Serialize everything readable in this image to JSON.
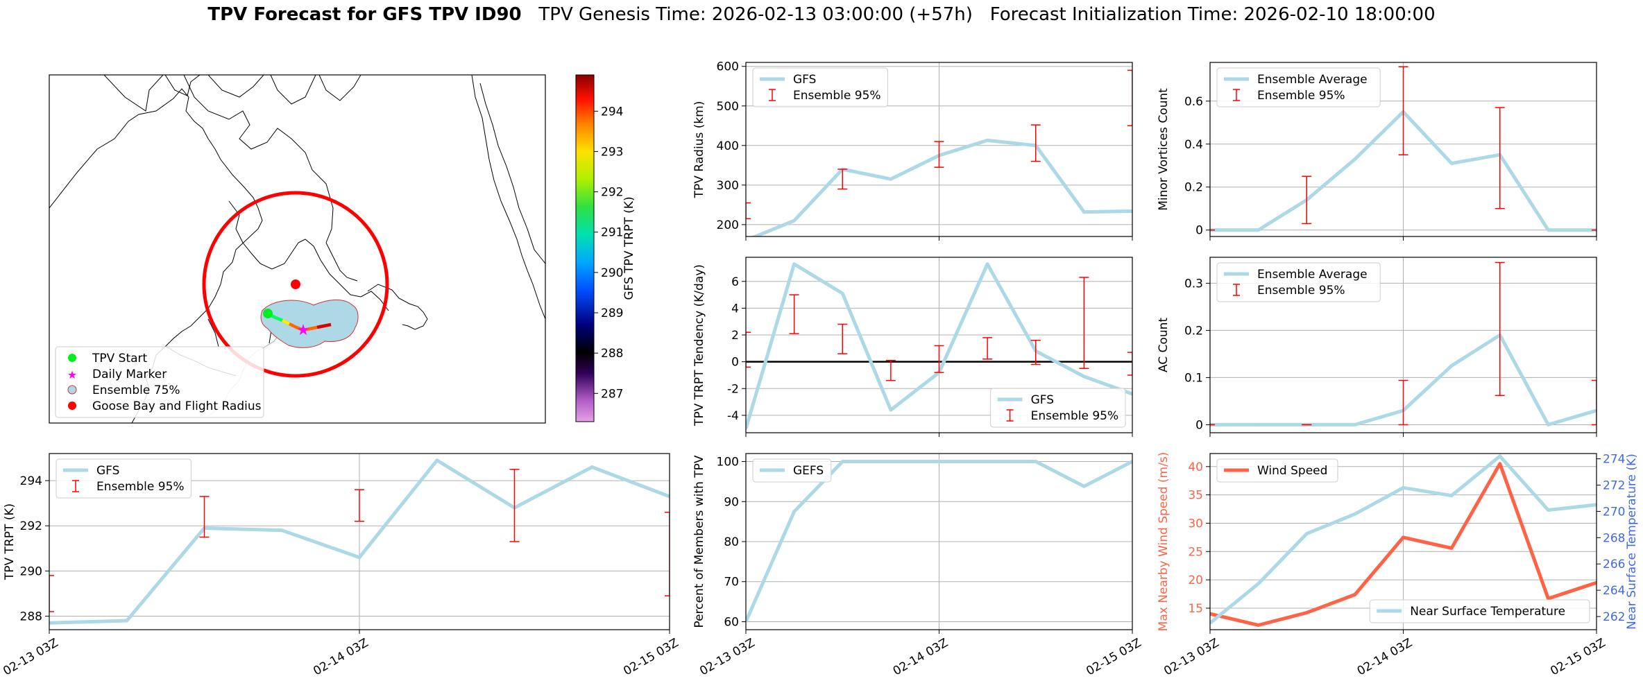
{
  "title": {
    "bold": "TPV Forecast for GFS TPV ID90",
    "genesis": "TPV Genesis Time: 2026-02-13 03:00:00 (+57h)",
    "init": "Forecast Initialization Time: 2026-02-10 18:00:00"
  },
  "time_ticks": [
    "02-13 03Z",
    "02-14 03Z",
    "02-15 03Z"
  ],
  "map": {
    "legend": [
      "TPV Start",
      "Daily Marker",
      "Ensemble 75%",
      "Goose Bay and Flight Radius"
    ],
    "colorbar_label": "GFS TPV TRPT (K)",
    "colorbar_ticks": [
      287,
      288,
      289,
      290,
      291,
      292,
      293,
      294
    ],
    "colorbar_range": [
      286.3,
      294.9
    ]
  },
  "chart_data": [
    {
      "id": "radius",
      "type": "line",
      "ylabel": "TPV Radius (km)",
      "ylim": [
        170,
        610
      ],
      "yticks": [
        200,
        300,
        400,
        500,
        600
      ],
      "x": [
        0,
        3,
        6,
        9,
        12,
        15,
        18,
        21,
        24
      ],
      "series": [
        {
          "name": "GFS",
          "color": "#ADD8E6",
          "values": [
            160,
            210,
            340,
            315,
            375,
            413,
            400,
            232,
            234
          ]
        }
      ],
      "errorbars": {
        "name": "Ensemble 95%",
        "color": "red",
        "x": [
          0,
          6,
          12,
          18,
          24
        ],
        "low": [
          215,
          290,
          345,
          360,
          450
        ],
        "high": [
          255,
          340,
          410,
          452,
          590
        ]
      },
      "legend": "top-left"
    },
    {
      "id": "minor",
      "type": "line",
      "ylabel": "Minor Vortices Count",
      "ylim": [
        -0.03,
        0.78
      ],
      "yticks": [
        0.0,
        0.2,
        0.4,
        0.6
      ],
      "x": [
        0,
        3,
        6,
        9,
        12,
        15,
        18,
        21,
        24
      ],
      "series": [
        {
          "name": "Ensemble Average",
          "color": "#ADD8E6",
          "values": [
            0,
            0,
            0.14,
            0.33,
            0.55,
            0.31,
            0.35,
            0,
            0
          ]
        }
      ],
      "errorbars": {
        "name": "Ensemble 95%",
        "color": "red",
        "x": [
          0,
          6,
          12,
          18,
          24
        ],
        "low": [
          0,
          0.03,
          0.35,
          0.1,
          0
        ],
        "high": [
          0,
          0.25,
          0.76,
          0.57,
          0
        ]
      },
      "legend": "top-left"
    },
    {
      "id": "tendency",
      "type": "line",
      "ylabel": "TPV TRPT Tendency (K/day)",
      "ylim": [
        -5.3,
        7.8
      ],
      "yticks": [
        -4,
        -2,
        0,
        2,
        4,
        6
      ],
      "x": [
        0,
        3,
        6,
        9,
        12,
        15,
        18,
        21,
        24
      ],
      "series": [
        {
          "name": "GFS",
          "color": "#ADD8E6",
          "values": [
            -5.0,
            7.3,
            5.1,
            -3.6,
            -0.8,
            7.3,
            0.8,
            -1.1,
            -2.4
          ]
        }
      ],
      "errorbars": {
        "name": "Ensemble 95%",
        "color": "red",
        "x": [
          0,
          3,
          6,
          9,
          12,
          15,
          18,
          21,
          24
        ],
        "low": [
          -0.4,
          2.1,
          0.6,
          -1.4,
          -0.8,
          0.2,
          -0.2,
          -0.5,
          -1.0
        ],
        "high": [
          2.2,
          5.0,
          2.8,
          0.1,
          1.2,
          1.8,
          1.6,
          6.3,
          0.7
        ]
      },
      "zero_line": true,
      "legend": "bottom-right"
    },
    {
      "id": "ac",
      "type": "line",
      "ylabel": "AC Count",
      "ylim": [
        -0.017,
        0.355
      ],
      "yticks": [
        0.0,
        0.1,
        0.2,
        0.3
      ],
      "x": [
        0,
        3,
        6,
        9,
        12,
        15,
        18,
        21,
        24
      ],
      "series": [
        {
          "name": "Ensemble Average",
          "color": "#ADD8E6",
          "values": [
            0,
            0,
            0,
            0,
            0.03,
            0.125,
            0.19,
            0,
            0.03
          ]
        }
      ],
      "errorbars": {
        "name": "Ensemble 95%",
        "color": "red",
        "x": [
          0,
          6,
          12,
          18,
          24
        ],
        "low": [
          0,
          0,
          0,
          0.062,
          0
        ],
        "high": [
          0,
          0,
          0.094,
          0.344,
          0.094
        ]
      },
      "legend": "top-left"
    },
    {
      "id": "trpt",
      "type": "line",
      "ylabel": "TPV TRPT (K)",
      "ylim": [
        287.4,
        295.2
      ],
      "yticks": [
        288,
        290,
        292,
        294
      ],
      "x": [
        0,
        3,
        6,
        9,
        12,
        15,
        18,
        21,
        24
      ],
      "series": [
        {
          "name": "GFS",
          "color": "#ADD8E6",
          "values": [
            287.7,
            287.8,
            291.9,
            291.8,
            290.6,
            294.9,
            292.8,
            294.6,
            293.3
          ]
        }
      ],
      "errorbars": {
        "name": "Ensemble 95%",
        "color": "red",
        "x": [
          0,
          6,
          12,
          18,
          24
        ],
        "low": [
          288.2,
          291.5,
          292.2,
          291.3,
          288.9
        ],
        "high": [
          289.8,
          293.3,
          293.6,
          294.5,
          292.6
        ]
      },
      "legend": "top-left"
    },
    {
      "id": "percent",
      "type": "line",
      "ylabel": "Percent of Members with TPV",
      "ylim": [
        58,
        102
      ],
      "yticks": [
        60,
        70,
        80,
        90,
        100
      ],
      "x": [
        0,
        3,
        6,
        9,
        12,
        15,
        18,
        21,
        24
      ],
      "series": [
        {
          "name": "GEFS",
          "color": "#ADD8E6",
          "values": [
            60,
            87.5,
            100,
            100,
            100,
            100,
            100,
            93.8,
            100
          ]
        }
      ],
      "legend": "top-left"
    },
    {
      "id": "wind",
      "type": "line",
      "ylabel": "Max Nearby Wind Speed (m/s)",
      "ylabel_color": "#FF6347",
      "ylim": [
        11.2,
        42.3
      ],
      "yticks": [
        15,
        20,
        25,
        30,
        35,
        40
      ],
      "y2label": "Near Surface Temperature (K)",
      "y2label_color": "#4169E1",
      "y2lim": [
        261.0,
        274.4
      ],
      "y2ticks": [
        262,
        264,
        266,
        268,
        270,
        272,
        274
      ],
      "x": [
        0,
        3,
        6,
        9,
        12,
        15,
        18,
        21,
        24
      ],
      "series": [
        {
          "name": "Wind Speed",
          "axis": "left",
          "color": "#FF6347",
          "values": [
            14.0,
            12.0,
            14.2,
            17.4,
            27.5,
            25.6,
            40.5,
            16.7,
            19.5
          ]
        },
        {
          "name": "Near Surface Temperature",
          "axis": "right",
          "color": "#ADD8E6",
          "values": [
            261.5,
            264.5,
            268.3,
            269.8,
            271.8,
            271.2,
            274.2,
            270.1,
            270.5
          ]
        }
      ],
      "legend_left": "top-left",
      "legend_right": "bottom-right"
    }
  ]
}
